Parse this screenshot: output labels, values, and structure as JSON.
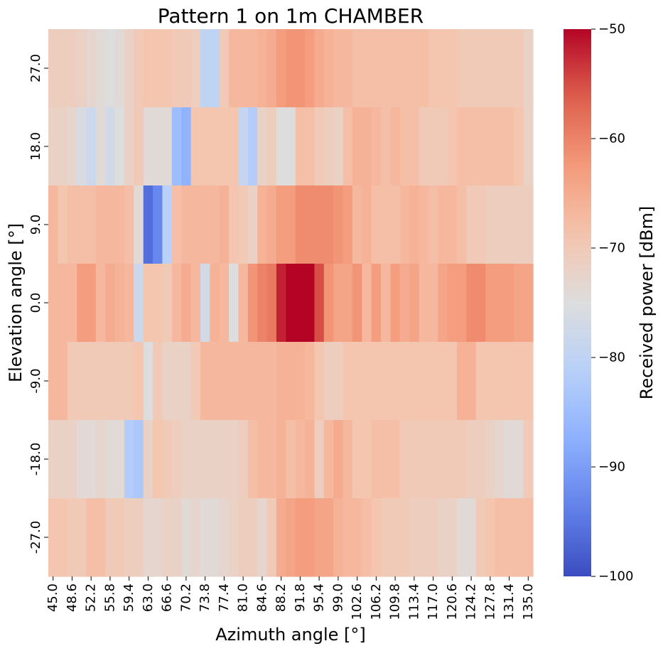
{
  "chart_data": {
    "type": "heatmap",
    "title": "Pattern 1 on 1m CHAMBER",
    "xlabel": "Azimuth angle [°]",
    "ylabel": "Elevation angle [°]",
    "colorbar_label": "Received power [dBm]",
    "colormap": "coolwarm",
    "vmin": -100,
    "vmax": -50,
    "colorbar_ticks": [
      -50,
      -60,
      -70,
      -80,
      -90,
      -100
    ],
    "colorbar_tick_labels": [
      "−50",
      "−60",
      "−70",
      "−80",
      "−90",
      "−100"
    ],
    "x": [
      45.0,
      46.8,
      48.6,
      50.4,
      52.2,
      54.0,
      55.8,
      57.6,
      59.4,
      61.2,
      63.0,
      64.8,
      66.6,
      68.4,
      70.2,
      72.0,
      73.8,
      75.6,
      77.4,
      79.2,
      81.0,
      82.8,
      84.6,
      86.4,
      88.2,
      90.0,
      91.8,
      93.6,
      95.4,
      97.2,
      99.0,
      100.8,
      102.6,
      104.4,
      106.2,
      108.0,
      109.8,
      111.6,
      113.4,
      115.2,
      117.0,
      118.8,
      120.6,
      122.4,
      124.2,
      126.0,
      127.8,
      129.6,
      131.4,
      133.2,
      135.0
    ],
    "x_tick_labels": [
      "45.0",
      "48.6",
      "52.2",
      "55.8",
      "59.4",
      "63.0",
      "66.6",
      "70.2",
      "73.8",
      "77.4",
      "81.0",
      "84.6",
      "88.2",
      "91.8",
      "95.4",
      "99.0",
      "102.6",
      "106.2",
      "109.8",
      "113.4",
      "117.0",
      "120.6",
      "124.2",
      "127.8",
      "131.4",
      "135.0"
    ],
    "y": [
      27.0,
      18.0,
      9.0,
      0.0,
      -9.0,
      -18.0,
      -27.0
    ],
    "y_tick_labels": [
      "27.0",
      "18.0",
      "9.0",
      "0.0",
      "-9.0",
      "-18.0",
      "-27.0"
    ],
    "values": [
      [
        -71,
        -71,
        -71,
        -72,
        -73,
        -74,
        -75,
        -74,
        -72,
        -70,
        -69,
        -69,
        -69,
        -70,
        -70,
        -71,
        -80,
        -80,
        -70,
        -67,
        -67,
        -67,
        -66,
        -65,
        -63,
        -62,
        -62,
        -63,
        -65,
        -66,
        -67,
        -67,
        -68,
        -68,
        -68,
        -68,
        -68,
        -68,
        -68,
        -68,
        -69,
        -69,
        -69,
        -70,
        -70,
        -70,
        -70,
        -70,
        -70,
        -70,
        -72
      ],
      [
        -72,
        -72,
        -73,
        -76,
        -78,
        -74,
        -77,
        -75,
        -72,
        -70,
        -74,
        -74,
        -74,
        -85,
        -87,
        -69,
        -69,
        -69,
        -69,
        -69,
        -79,
        -82,
        -72,
        -71,
        -75,
        -75,
        -68,
        -68,
        -70,
        -71,
        -72,
        -68,
        -66,
        -66,
        -67,
        -68,
        -67,
        -68,
        -68,
        -70,
        -70,
        -70,
        -69,
        -68,
        -68,
        -68,
        -68,
        -68,
        -68,
        -69,
        -72
      ],
      [
        -67,
        -69,
        -68,
        -68,
        -68,
        -67,
        -67,
        -67,
        -68,
        -74,
        -96,
        -93,
        -81,
        -68,
        -67,
        -67,
        -67,
        -67,
        -66,
        -69,
        -70,
        -72,
        -66,
        -65,
        -63,
        -63,
        -61,
        -61,
        -61,
        -61,
        -62,
        -63,
        -67,
        -66,
        -68,
        -68,
        -68,
        -67,
        -66,
        -67,
        -68,
        -67,
        -67,
        -68,
        -70,
        -70,
        -71,
        -71,
        -71,
        -71,
        -71
      ],
      [
        -67,
        -67,
        -67,
        -63,
        -63,
        -67,
        -65,
        -66,
        -67,
        -78,
        -69,
        -69,
        -70,
        -67,
        -65,
        -67,
        -77,
        -66,
        -67,
        -75,
        -67,
        -62,
        -60,
        -59,
        -52,
        -50,
        -50,
        -50,
        -55,
        -62,
        -64,
        -64,
        -62,
        -67,
        -63,
        -67,
        -63,
        -65,
        -64,
        -67,
        -67,
        -64,
        -63,
        -63,
        -61,
        -61,
        -63,
        -63,
        -63,
        -64,
        -64
      ],
      [
        -67,
        -67,
        -70,
        -70,
        -70,
        -70,
        -70,
        -70,
        -70,
        -69,
        -75,
        -70,
        -72,
        -72,
        -72,
        -70,
        -67,
        -67,
        -67,
        -67,
        -67,
        -67,
        -67,
        -67,
        -66,
        -66,
        -66,
        -67,
        -69,
        -71,
        -71,
        -69,
        -69,
        -69,
        -69,
        -69,
        -69,
        -69,
        -69,
        -69,
        -69,
        -69,
        -69,
        -66,
        -66,
        -69,
        -69,
        -69,
        -69,
        -69,
        -69
      ],
      [
        -72,
        -72,
        -72,
        -74,
        -74,
        -73,
        -74,
        -74,
        -82,
        -83,
        -72,
        -69,
        -70,
        -71,
        -72,
        -72,
        -72,
        -72,
        -72,
        -72,
        -71,
        -68,
        -67,
        -67,
        -66,
        -68,
        -67,
        -66,
        -71,
        -67,
        -65,
        -67,
        -69,
        -69,
        -68,
        -68,
        -68,
        -70,
        -70,
        -70,
        -70,
        -70,
        -70,
        -70,
        -71,
        -71,
        -72,
        -73,
        -74,
        -74,
        -70
      ],
      [
        -69,
        -69,
        -70,
        -70,
        -68,
        -68,
        -70,
        -70,
        -71,
        -71,
        -73,
        -73,
        -72,
        -72,
        -74,
        -73,
        -74,
        -74,
        -73,
        -72,
        -71,
        -71,
        -73,
        -70,
        -65,
        -64,
        -63,
        -63,
        -64,
        -64,
        -66,
        -67,
        -67,
        -68,
        -69,
        -70,
        -70,
        -70,
        -71,
        -71,
        -71,
        -72,
        -72,
        -74,
        -74,
        -70,
        -69,
        -68,
        -68,
        -68,
        -68
      ]
    ]
  }
}
